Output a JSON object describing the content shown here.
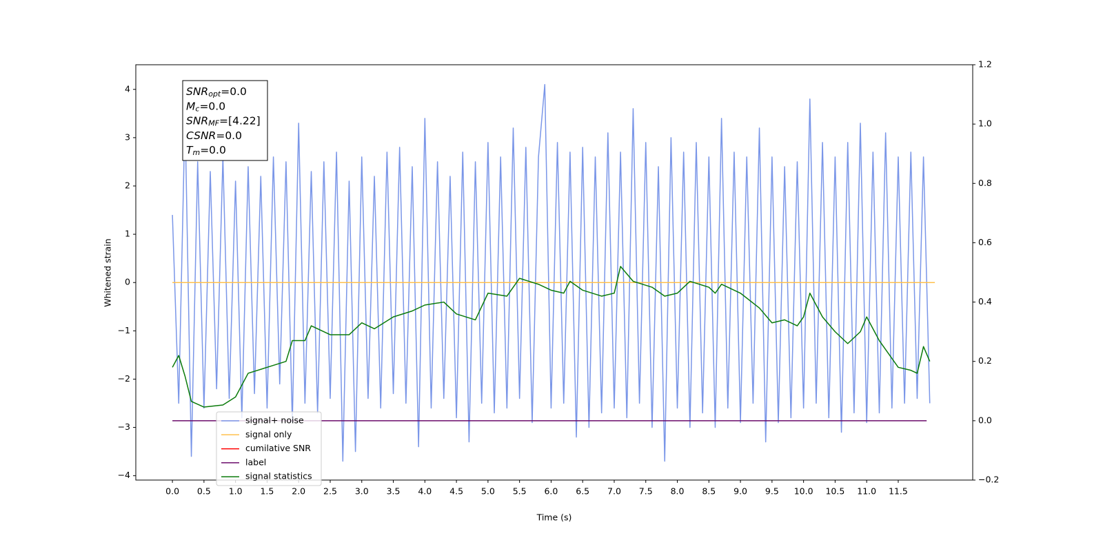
{
  "chart_data": {
    "type": "line",
    "xlabel": "Time (s)",
    "ylabel": "Whitened strain",
    "xlim": [
      -0.58,
      12.68
    ],
    "ylim": [
      -4.09,
      4.51
    ],
    "y2lim": [
      -0.2,
      1.2
    ],
    "xticks": [
      {
        "value": 0,
        "label": "0.0"
      },
      0.5,
      {
        "value": 1,
        "label": "1.0"
      },
      1.5,
      {
        "value": 2,
        "label": "2.0"
      },
      2.5,
      {
        "value": 3,
        "label": "3.0"
      },
      3.5,
      {
        "value": 4,
        "label": "4.0"
      },
      4.5,
      {
        "value": 5,
        "label": "5.0"
      },
      5.5,
      {
        "value": 6,
        "label": "6.0"
      },
      6.5,
      {
        "value": 7,
        "label": "7.0"
      },
      7.5,
      {
        "value": 8,
        "label": "8.0"
      },
      8.5,
      {
        "value": 9,
        "label": "9.0"
      },
      9.5,
      {
        "value": 10,
        "label": "10.0"
      },
      10.5,
      {
        "value": 11,
        "label": "11.0"
      },
      11.5
    ],
    "yticks": [
      {
        "value": -4,
        "label": "−4"
      },
      {
        "value": -3,
        "label": "−3"
      },
      {
        "value": -2,
        "label": "−2"
      },
      {
        "value": -1,
        "label": "−1"
      },
      0,
      1,
      2,
      3,
      4
    ],
    "y2ticks": [
      {
        "value": -0.2,
        "label": "−0.2"
      },
      {
        "value": 0,
        "label": "0.0"
      },
      0.2,
      0.4,
      0.6,
      0.8,
      {
        "value": 1,
        "label": "1.0"
      },
      1.2
    ],
    "annotations": [
      {
        "text": "SNR",
        "sub": "opt",
        "value": "=0.0"
      },
      {
        "text": "M",
        "sub": "c",
        "value": "=0.0"
      },
      {
        "text": "SNR",
        "sub": "MF",
        "value": "=[4.22]"
      },
      {
        "text": "CSNR",
        "value": "=0.0"
      },
      {
        "text": "T",
        "sub": "m",
        "value": "=0.0"
      }
    ],
    "legend": "lower left",
    "series": [
      {
        "name": "signal+ noise",
        "color": "#7a96e8",
        "x": [
          0.0,
          0.1,
          0.2,
          0.3,
          0.4,
          0.5,
          0.6,
          0.7,
          0.8,
          0.9,
          1.0,
          1.1,
          1.2,
          1.3,
          1.4,
          1.5,
          1.6,
          1.7,
          1.8,
          1.9,
          2.0,
          2.1,
          2.2,
          2.3,
          2.4,
          2.5,
          2.6,
          2.7,
          2.8,
          2.9,
          3.0,
          3.1,
          3.2,
          3.3,
          3.4,
          3.5,
          3.6,
          3.7,
          3.8,
          3.9,
          4.0,
          4.1,
          4.2,
          4.3,
          4.4,
          4.5,
          4.6,
          4.7,
          4.8,
          4.9,
          5.0,
          5.1,
          5.2,
          5.3,
          5.4,
          5.5,
          5.6,
          5.7,
          5.8,
          5.9,
          6.0,
          6.1,
          6.2,
          6.3,
          6.4,
          6.5,
          6.6,
          6.7,
          6.8,
          6.9,
          7.0,
          7.1,
          7.2,
          7.3,
          7.4,
          7.5,
          7.6,
          7.7,
          7.8,
          7.9,
          8.0,
          8.1,
          8.2,
          8.3,
          8.4,
          8.5,
          8.6,
          8.7,
          8.8,
          8.9,
          9.0,
          9.1,
          9.2,
          9.3,
          9.4,
          9.5,
          9.6,
          9.7,
          9.8,
          9.9,
          10.0,
          10.1,
          10.2,
          10.3,
          10.4,
          10.5,
          10.6,
          10.7,
          10.8,
          10.9,
          11.0,
          11.1,
          11.2,
          11.3,
          11.4,
          11.5,
          11.6,
          11.7,
          11.8,
          11.9,
          12.0
        ],
        "values": [
          1.4,
          -2.5,
          3.5,
          -3.6,
          2.5,
          -2.6,
          2.3,
          -2.2,
          2.6,
          -2.4,
          2.1,
          -2.8,
          2.4,
          -2.3,
          2.2,
          -2.6,
          2.6,
          -2.1,
          2.5,
          -2.9,
          3.3,
          -2.5,
          2.3,
          -2.7,
          2.5,
          -2.4,
          2.7,
          -3.7,
          2.1,
          -3.5,
          2.6,
          -2.4,
          2.2,
          -2.6,
          2.7,
          -2.3,
          2.8,
          -2.5,
          2.4,
          -3.4,
          3.4,
          -2.6,
          2.5,
          -2.4,
          2.2,
          -2.8,
          2.7,
          -3.3,
          2.5,
          -2.5,
          2.9,
          -2.7,
          2.6,
          -2.6,
          3.2,
          -2.4,
          2.8,
          -2.9,
          2.6,
          4.1,
          -2.6,
          2.9,
          -2.5,
          2.7,
          -3.2,
          2.8,
          -3.0,
          2.6,
          -2.7,
          3.1,
          -2.6,
          2.7,
          -2.8,
          3.6,
          -2.5,
          2.9,
          -3.0,
          2.4,
          -3.7,
          3.0,
          -2.6,
          2.7,
          -3.0,
          2.9,
          -2.7,
          2.6,
          -3.0,
          3.4,
          -2.6,
          2.7,
          -2.9,
          2.6,
          -2.5,
          3.2,
          -3.3,
          2.6,
          -2.9,
          2.4,
          -2.8,
          2.5,
          -2.6,
          3.8,
          -2.5,
          2.9,
          -2.8,
          2.6,
          -3.1,
          2.9,
          -2.7,
          3.3,
          -2.9,
          2.7,
          -2.7,
          3.1,
          -2.6,
          2.6,
          -2.5,
          2.7,
          -2.4,
          2.6,
          -2.5
        ]
      },
      {
        "name": "signal only",
        "color": "#ffc04d",
        "x": [
          0,
          12.08
        ],
        "values": [
          0,
          0
        ]
      },
      {
        "name": "cumilative SNR",
        "color": "#ff0000"
      },
      {
        "name": "label",
        "color": "#6a0a6a",
        "axis": "y2",
        "x": [
          0,
          11.95
        ],
        "values": [
          0,
          0
        ]
      },
      {
        "name": "signal statistics",
        "color": "#0a7a0a",
        "axis": "y2",
        "x": [
          0.0,
          0.1,
          0.2,
          0.3,
          0.5,
          0.8,
          1.0,
          1.2,
          1.5,
          1.8,
          1.9,
          2.1,
          2.2,
          2.5,
          2.8,
          3.0,
          3.2,
          3.5,
          3.8,
          4.0,
          4.3,
          4.5,
          4.8,
          5.0,
          5.3,
          5.5,
          5.8,
          6.0,
          6.2,
          6.3,
          6.5,
          6.8,
          7.0,
          7.1,
          7.3,
          7.6,
          7.8,
          8.0,
          8.2,
          8.5,
          8.6,
          8.7,
          9.0,
          9.3,
          9.5,
          9.7,
          9.9,
          10.0,
          10.1,
          10.3,
          10.5,
          10.7,
          10.9,
          11.0,
          11.2,
          11.5,
          11.7,
          11.8,
          11.9,
          12.0
        ],
        "values": [
          0.18,
          0.22,
          0.15,
          0.065,
          0.046,
          0.053,
          0.08,
          0.16,
          0.18,
          0.2,
          0.27,
          0.27,
          0.32,
          0.29,
          0.29,
          0.33,
          0.31,
          0.35,
          0.37,
          0.39,
          0.4,
          0.36,
          0.34,
          0.43,
          0.42,
          0.48,
          0.46,
          0.44,
          0.43,
          0.47,
          0.44,
          0.42,
          0.43,
          0.52,
          0.47,
          0.45,
          0.42,
          0.43,
          0.47,
          0.45,
          0.43,
          0.46,
          0.43,
          0.38,
          0.33,
          0.34,
          0.32,
          0.35,
          0.43,
          0.35,
          0.3,
          0.26,
          0.3,
          0.35,
          0.27,
          0.18,
          0.17,
          0.16,
          0.25,
          0.2
        ]
      }
    ]
  }
}
